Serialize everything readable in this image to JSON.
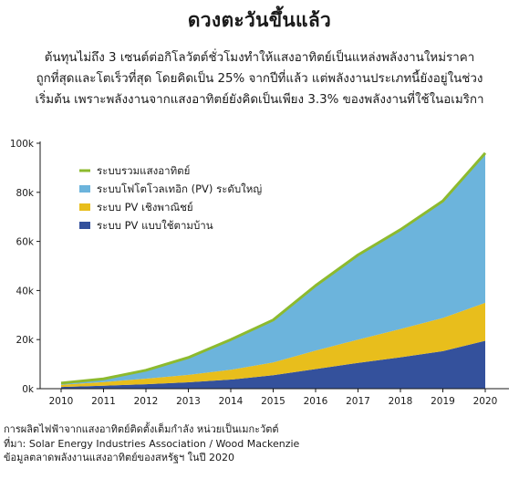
{
  "title": "ดวงตะวันขึ้นแล้ว",
  "subtitle_lines": [
    "ต้นทุนไม่ถึง 3 เซนต์ต่อกิโลวัตต์ชั่วโมงทำให้แสงอาทิตย์เป็นแหล่งพลังงานใหม่ราคา",
    "ถูกที่สุดและโตเร็วที่สุด โดยคิดเป็น 25% จากปีที่แล้ว แต่พลังงานประเภทนี้ยังอยู่ในช่วง",
    "เริ่มต้น เพราะพลังงานจากแสงอาทิตย์ยังคิดเป็นเพียง 3.3% ของพลังงานที่ใช้ในอเมริกา"
  ],
  "footer_lines": [
    "การผลิตไฟฟ้าจากแสงอาทิตย์ติดตั้งเต็มกำลัง หน่วยเป็นเมกะวัตต์",
    "ที่มา: Solar Energy Industries Association / Wood Mackenzie",
    "ข้อมูลตลาดพลังงานแสงอาทิตย์ของสหรัฐฯ ในปี 2020"
  ],
  "colors": {
    "total_line": "#8dba2e",
    "utility": "#6cb4dc",
    "commercial": "#e8be1c",
    "residential": "#34519c",
    "axis": "#1a1a1a"
  },
  "chart_data": {
    "type": "area",
    "stacked": true,
    "x": [
      2010,
      2011,
      2012,
      2013,
      2014,
      2015,
      2016,
      2017,
      2018,
      2019,
      2020
    ],
    "ylim": [
      0,
      100000
    ],
    "y_ticks": [
      "0k",
      "20k",
      "40k",
      "60k",
      "80k",
      "100k"
    ],
    "y_tick_values": [
      0,
      20000,
      40000,
      60000,
      80000,
      100000
    ],
    "grid": false,
    "legend_position": "top-left",
    "legend": [
      {
        "key": "total",
        "label": "ระบบรวมแสงอาทิตย์"
      },
      {
        "key": "utility",
        "label": "ระบบโฟโตโวลเทอิก (PV) ระดับใหญ่"
      },
      {
        "key": "commercial",
        "label": "ระบบ PV เชิงพาณิชย์"
      },
      {
        "key": "residential",
        "label": "ระบบ PV แบบใช้ตามบ้าน"
      }
    ],
    "series": [
      {
        "key": "residential",
        "values": [
          700,
          1200,
          1800,
          2600,
          3700,
          5500,
          8000,
          10500,
          12800,
          15300,
          19500
        ]
      },
      {
        "key": "commercial",
        "values": [
          900,
          1500,
          2300,
          3000,
          4000,
          5200,
          7500,
          9500,
          11500,
          13500,
          15500
        ]
      },
      {
        "key": "utility",
        "values": [
          700,
          1300,
          3400,
          7100,
          12300,
          17300,
          26500,
          34500,
          40500,
          47700,
          61000
        ]
      }
    ],
    "total": [
      2300,
      4000,
      7500,
      12700,
      20000,
      28000,
      42000,
      54500,
      64800,
      76500,
      96000
    ]
  }
}
